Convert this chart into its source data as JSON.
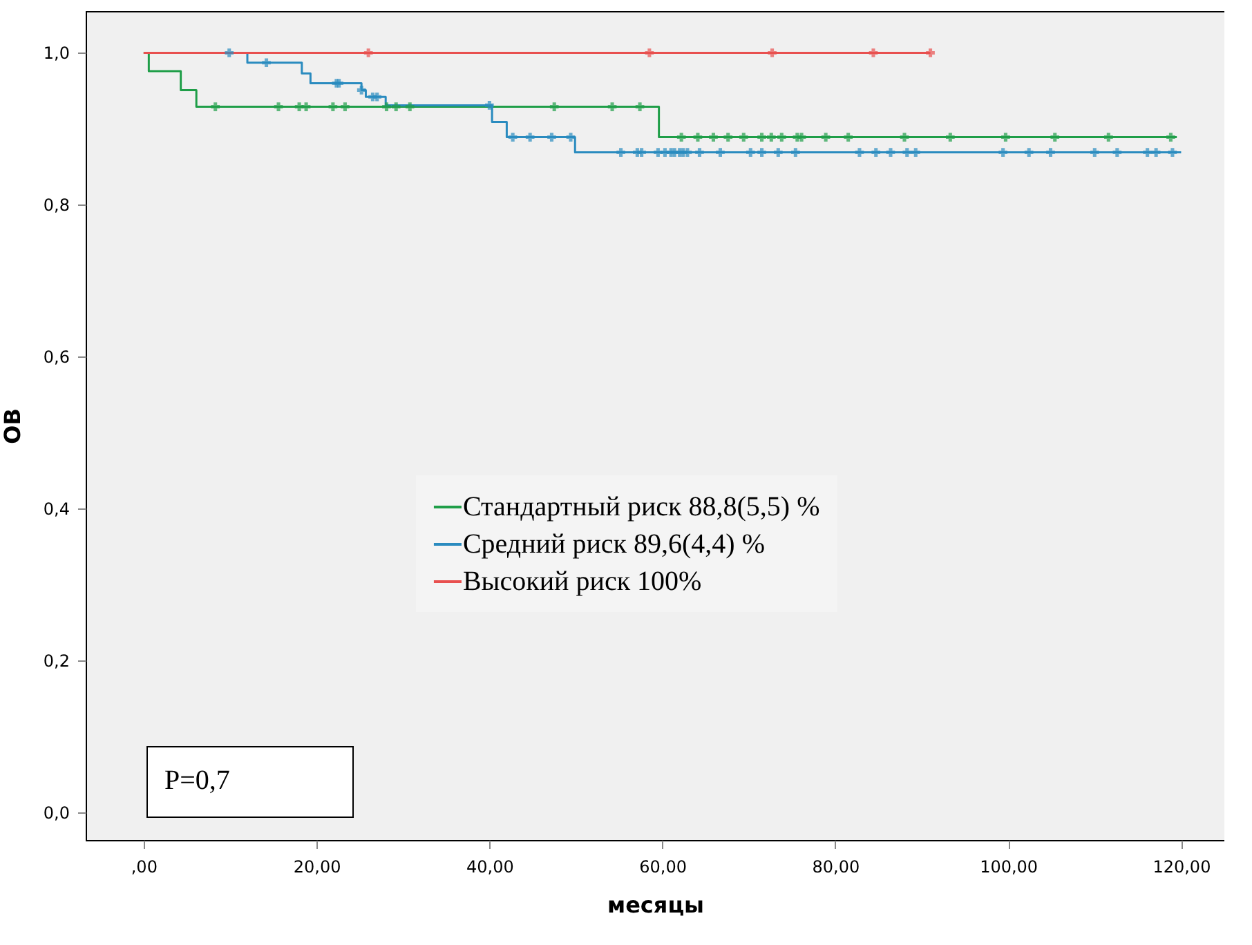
{
  "chart_data": {
    "type": "step",
    "xlabel": "месяцы",
    "ylabel": "ОВ",
    "xlim": [
      -6.7,
      125
    ],
    "ylim": [
      -0.036,
      1.055
    ],
    "xticks": [
      {
        "value": 0,
        "label": ",00"
      },
      {
        "value": 20,
        "label": "20,00"
      },
      {
        "value": 40,
        "label": "40,00"
      },
      {
        "value": 60,
        "label": "60,00"
      },
      {
        "value": 80,
        "label": "80,00"
      },
      {
        "value": 100,
        "label": "100,00"
      },
      {
        "value": 120,
        "label": "120,00"
      }
    ],
    "yticks": [
      {
        "value": 0,
        "label": "0,0"
      },
      {
        "value": 0.2,
        "label": "0,2"
      },
      {
        "value": 0.4,
        "label": "0,4"
      },
      {
        "value": 0.6,
        "label": "0,6"
      },
      {
        "value": 0.8,
        "label": "0,8"
      },
      {
        "value": 1,
        "label": "1,0"
      }
    ],
    "grid": false,
    "legend": "center",
    "marker": "none",
    "annotations": [
      "P=0,7"
    ],
    "series": [
      {
        "name": "Стандартный риск 88,8(5,5) %",
        "color": "#1f9e48",
        "x": [
          0,
          0.6,
          4.3,
          6.1,
          59.6,
          119.5
        ],
        "values": [
          1,
          0.976,
          0.951,
          0.929,
          0.889,
          0.889
        ]
      },
      {
        "name": "Средний риск 89,6(4,4) %",
        "color": "#2a8bbf",
        "x": [
          10,
          12,
          18.3,
          19.3,
          25.2,
          25.7,
          28,
          40.3,
          42,
          49.9,
          120
        ],
        "values": [
          1,
          0.987,
          0.973,
          0.96,
          0.951,
          0.942,
          0.931,
          0.909,
          0.889,
          0.869,
          0.869
        ]
      },
      {
        "name": "Высокий риск 100%",
        "color": "#e8504f",
        "x": [
          0,
          91
        ],
        "values": [
          1,
          1
        ]
      },
      {
        "type": "scatter",
        "marker": "cross",
        "color": "#1f9e48",
        "x": [
          8.3,
          15.6,
          18.0,
          18.8,
          21.9,
          23.3,
          28.1,
          29.2,
          30.8,
          47.5,
          54.2,
          57.4,
          62.2,
          64.1,
          65.9,
          67.6,
          69.4,
          71.5,
          72.6,
          73.8,
          75.6,
          76.1,
          78.9,
          81.5,
          88.0,
          93.3,
          99.7,
          105.4,
          111.6,
          118.8
        ],
        "values": [
          0.929,
          0.929,
          0.929,
          0.929,
          0.929,
          0.929,
          0.929,
          0.929,
          0.929,
          0.929,
          0.929,
          0.929,
          0.889,
          0.889,
          0.889,
          0.889,
          0.889,
          0.889,
          0.889,
          0.889,
          0.889,
          0.889,
          0.889,
          0.889,
          0.889,
          0.889,
          0.889,
          0.889,
          0.889,
          0.889
        ]
      },
      {
        "type": "scatter",
        "marker": "cross",
        "color": "#2a8bbf",
        "x": [
          9.9,
          14.2,
          22.3,
          22.6,
          25.2,
          26.5,
          27.0,
          40.0,
          42.7,
          44.7,
          47.2,
          49.4,
          55.2,
          57.1,
          57.6,
          59.5,
          60.3,
          61.0,
          61.4,
          62.0,
          62.4,
          62.9,
          64.3,
          66.7,
          70.2,
          71.5,
          73.4,
          75.4,
          82.8,
          84.7,
          86.4,
          88.3,
          89.3,
          99.4,
          102.4,
          104.9,
          110.0,
          112.6,
          116.1,
          117.1,
          119.0
        ],
        "values": [
          1,
          0.987,
          0.96,
          0.96,
          0.951,
          0.942,
          0.942,
          0.931,
          0.889,
          0.889,
          0.889,
          0.889,
          0.869,
          0.869,
          0.869,
          0.869,
          0.869,
          0.869,
          0.869,
          0.869,
          0.869,
          0.869,
          0.869,
          0.869,
          0.869,
          0.869,
          0.869,
          0.869,
          0.869,
          0.869,
          0.869,
          0.869,
          0.869,
          0.869,
          0.869,
          0.869,
          0.869,
          0.869,
          0.869,
          0.869,
          0.869
        ]
      },
      {
        "type": "scatter",
        "marker": "cross",
        "color": "#e8504f",
        "x": [
          26,
          58.5,
          72.7,
          84.4,
          91
        ],
        "values": [
          1,
          1,
          1,
          1,
          1
        ]
      }
    ]
  }
}
